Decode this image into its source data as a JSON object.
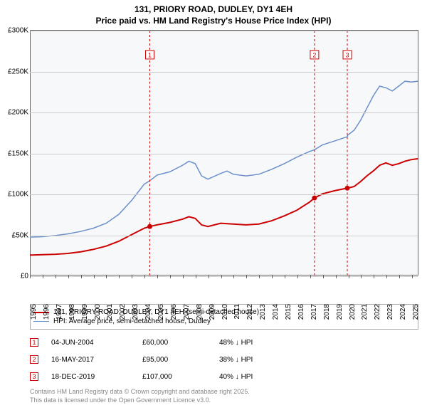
{
  "title": "131, PRIORY ROAD, DUDLEY, DY1 4EH",
  "subtitle": "Price paid vs. HM Land Registry's House Price Index (HPI)",
  "chart": {
    "type": "line",
    "background_color": "#f7f8fa",
    "grid_color": "#cccccc",
    "xlim": [
      1995,
      2025.5
    ],
    "ylim": [
      0,
      300000
    ],
    "y_ticks": [
      {
        "v": 0,
        "label": "£0"
      },
      {
        "v": 50000,
        "label": "£50K"
      },
      {
        "v": 100000,
        "label": "£100K"
      },
      {
        "v": 150000,
        "label": "£150K"
      },
      {
        "v": 200000,
        "label": "£200K"
      },
      {
        "v": 250000,
        "label": "£250K"
      },
      {
        "v": 300000,
        "label": "£300K"
      }
    ],
    "x_ticks": [
      "1995",
      "1996",
      "1997",
      "1998",
      "1999",
      "2000",
      "2001",
      "2002",
      "2003",
      "2004",
      "2005",
      "2006",
      "2007",
      "2008",
      "2009",
      "2010",
      "2011",
      "2012",
      "2013",
      "2014",
      "2015",
      "2016",
      "2017",
      "2018",
      "2019",
      "2020",
      "2021",
      "2022",
      "2023",
      "2024",
      "2025"
    ],
    "series": [
      {
        "name": "property",
        "label": "131, PRIORY ROAD, DUDLEY, DY1 4EH (semi-detached house)",
        "color": "#cc0000",
        "line_width": 2,
        "points": [
          [
            1995,
            25000
          ],
          [
            1996,
            25500
          ],
          [
            1997,
            26000
          ],
          [
            1998,
            27000
          ],
          [
            1999,
            29000
          ],
          [
            2000,
            32000
          ],
          [
            2001,
            36000
          ],
          [
            2002,
            42000
          ],
          [
            2003,
            50000
          ],
          [
            2004,
            58000
          ],
          [
            2004.43,
            60000
          ],
          [
            2005,
            62000
          ],
          [
            2006,
            65000
          ],
          [
            2007,
            69000
          ],
          [
            2007.5,
            72000
          ],
          [
            2008,
            70000
          ],
          [
            2008.5,
            62000
          ],
          [
            2009,
            60000
          ],
          [
            2010,
            64000
          ],
          [
            2011,
            63000
          ],
          [
            2012,
            62000
          ],
          [
            2013,
            63000
          ],
          [
            2014,
            67000
          ],
          [
            2015,
            73000
          ],
          [
            2016,
            80000
          ],
          [
            2017,
            90000
          ],
          [
            2017.38,
            95000
          ],
          [
            2018,
            100000
          ],
          [
            2019,
            104000
          ],
          [
            2019.96,
            107000
          ],
          [
            2020,
            107000
          ],
          [
            2020.5,
            109000
          ],
          [
            2021,
            115000
          ],
          [
            2021.5,
            122000
          ],
          [
            2022,
            128000
          ],
          [
            2022.5,
            135000
          ],
          [
            2023,
            138000
          ],
          [
            2023.5,
            135000
          ],
          [
            2024,
            137000
          ],
          [
            2024.5,
            140000
          ],
          [
            2025,
            142000
          ],
          [
            2025.5,
            143000
          ]
        ]
      },
      {
        "name": "hpi",
        "label": "HPI: Average price, semi-detached house, Dudley",
        "color": "#6b8fc9",
        "line_width": 1.5,
        "points": [
          [
            1995,
            47000
          ],
          [
            1996,
            47500
          ],
          [
            1997,
            49000
          ],
          [
            1998,
            51000
          ],
          [
            1999,
            54000
          ],
          [
            2000,
            58000
          ],
          [
            2001,
            64000
          ],
          [
            2002,
            75000
          ],
          [
            2003,
            92000
          ],
          [
            2004,
            112000
          ],
          [
            2004.43,
            116000
          ],
          [
            2005,
            123000
          ],
          [
            2006,
            127000
          ],
          [
            2007,
            135000
          ],
          [
            2007.5,
            140000
          ],
          [
            2008,
            137000
          ],
          [
            2008.5,
            122000
          ],
          [
            2009,
            118000
          ],
          [
            2010,
            125000
          ],
          [
            2010.5,
            128000
          ],
          [
            2011,
            124000
          ],
          [
            2012,
            122000
          ],
          [
            2013,
            124000
          ],
          [
            2014,
            130000
          ],
          [
            2015,
            137000
          ],
          [
            2016,
            145000
          ],
          [
            2017,
            152000
          ],
          [
            2017.38,
            154000
          ],
          [
            2018,
            160000
          ],
          [
            2019,
            165000
          ],
          [
            2019.96,
            170000
          ],
          [
            2020,
            172000
          ],
          [
            2020.5,
            178000
          ],
          [
            2021,
            190000
          ],
          [
            2021.5,
            205000
          ],
          [
            2022,
            220000
          ],
          [
            2022.5,
            232000
          ],
          [
            2023,
            230000
          ],
          [
            2023.5,
            226000
          ],
          [
            2024,
            232000
          ],
          [
            2024.5,
            238000
          ],
          [
            2025,
            237000
          ],
          [
            2025.5,
            238000
          ]
        ]
      }
    ],
    "sale_markers": [
      {
        "n": "1",
        "year": 2004.43,
        "price": 60000,
        "color": "#cc0000"
      },
      {
        "n": "2",
        "year": 2017.38,
        "price": 95000,
        "color": "#cc0000"
      },
      {
        "n": "3",
        "year": 2019.96,
        "price": 107000,
        "color": "#cc0000"
      }
    ]
  },
  "legend_items": [
    {
      "color": "#cc0000",
      "label": "131, PRIORY ROAD, DUDLEY, DY1 4EH (semi-detached house)",
      "width": 2
    },
    {
      "color": "#6b8fc9",
      "label": "HPI: Average price, semi-detached house, Dudley",
      "width": 1.5
    }
  ],
  "sales_table": [
    {
      "n": "1",
      "date": "04-JUN-2004",
      "price": "£60,000",
      "diff": "48% ↓ HPI",
      "color": "#cc0000"
    },
    {
      "n": "2",
      "date": "16-MAY-2017",
      "price": "£95,000",
      "diff": "38% ↓ HPI",
      "color": "#cc0000"
    },
    {
      "n": "3",
      "date": "18-DEC-2019",
      "price": "£107,000",
      "diff": "40% ↓ HPI",
      "color": "#cc0000"
    }
  ],
  "footer_line1": "Contains HM Land Registry data © Crown copyright and database right 2025.",
  "footer_line2": "This data is licensed under the Open Government Licence v3.0."
}
